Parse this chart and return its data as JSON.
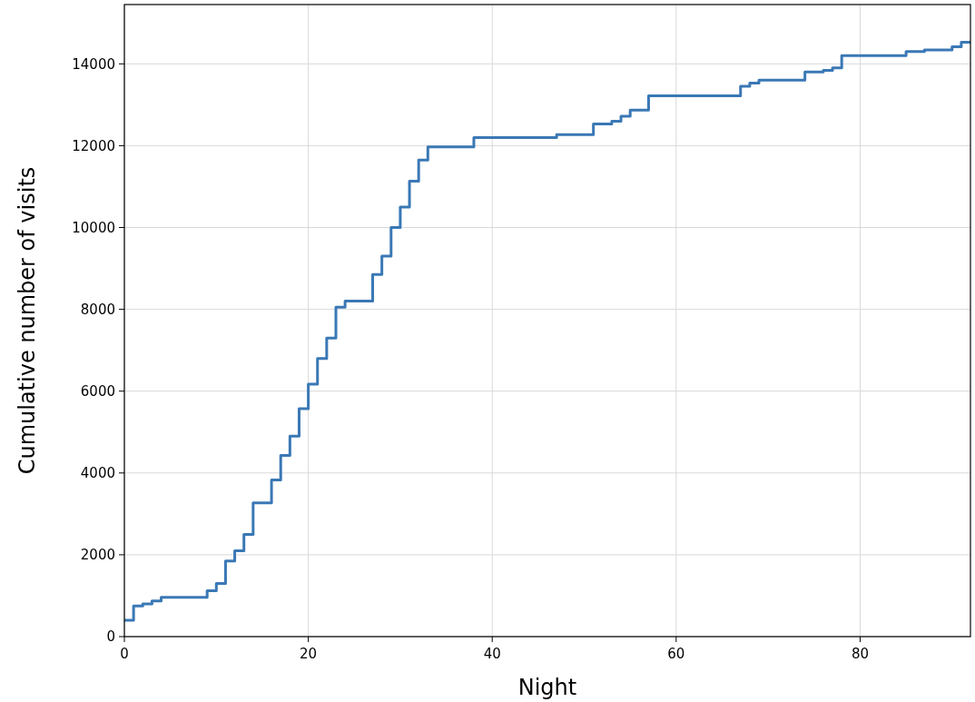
{
  "chart_data": {
    "type": "step",
    "xlabel": "Night",
    "ylabel": "Cumulative number of visits",
    "x": [
      0,
      1,
      2,
      3,
      4,
      9,
      10,
      11,
      12,
      13,
      14,
      16,
      17,
      18,
      19,
      20,
      21,
      22,
      23,
      24,
      27,
      28,
      29,
      30,
      31,
      32,
      33,
      38,
      47,
      51,
      53,
      54,
      55,
      57,
      67,
      68,
      69,
      74,
      76,
      77,
      78,
      85,
      87,
      90,
      91,
      92
    ],
    "series": [
      {
        "color": "#3a78b5",
        "values": [
          400,
          750,
          800,
          870,
          960,
          1120,
          1300,
          1850,
          2100,
          2500,
          3270,
          3830,
          4430,
          4900,
          5570,
          6170,
          6800,
          7300,
          8050,
          8200,
          8850,
          9300,
          10000,
          10500,
          11130,
          11650,
          11970,
          12200,
          12270,
          12530,
          12600,
          12720,
          12870,
          13220,
          13450,
          13530,
          13600,
          13800,
          13840,
          13900,
          14200,
          14300,
          14340,
          14420,
          14530,
          14530
        ]
      }
    ],
    "xlim": [
      0,
      92
    ],
    "ylim": [
      0,
      15450
    ],
    "xticks": [
      0,
      20,
      40,
      60,
      80
    ],
    "yticks": [
      0,
      2000,
      4000,
      6000,
      8000,
      10000,
      12000,
      14000
    ],
    "grid": true,
    "marker": "none",
    "line_style": "solid"
  }
}
